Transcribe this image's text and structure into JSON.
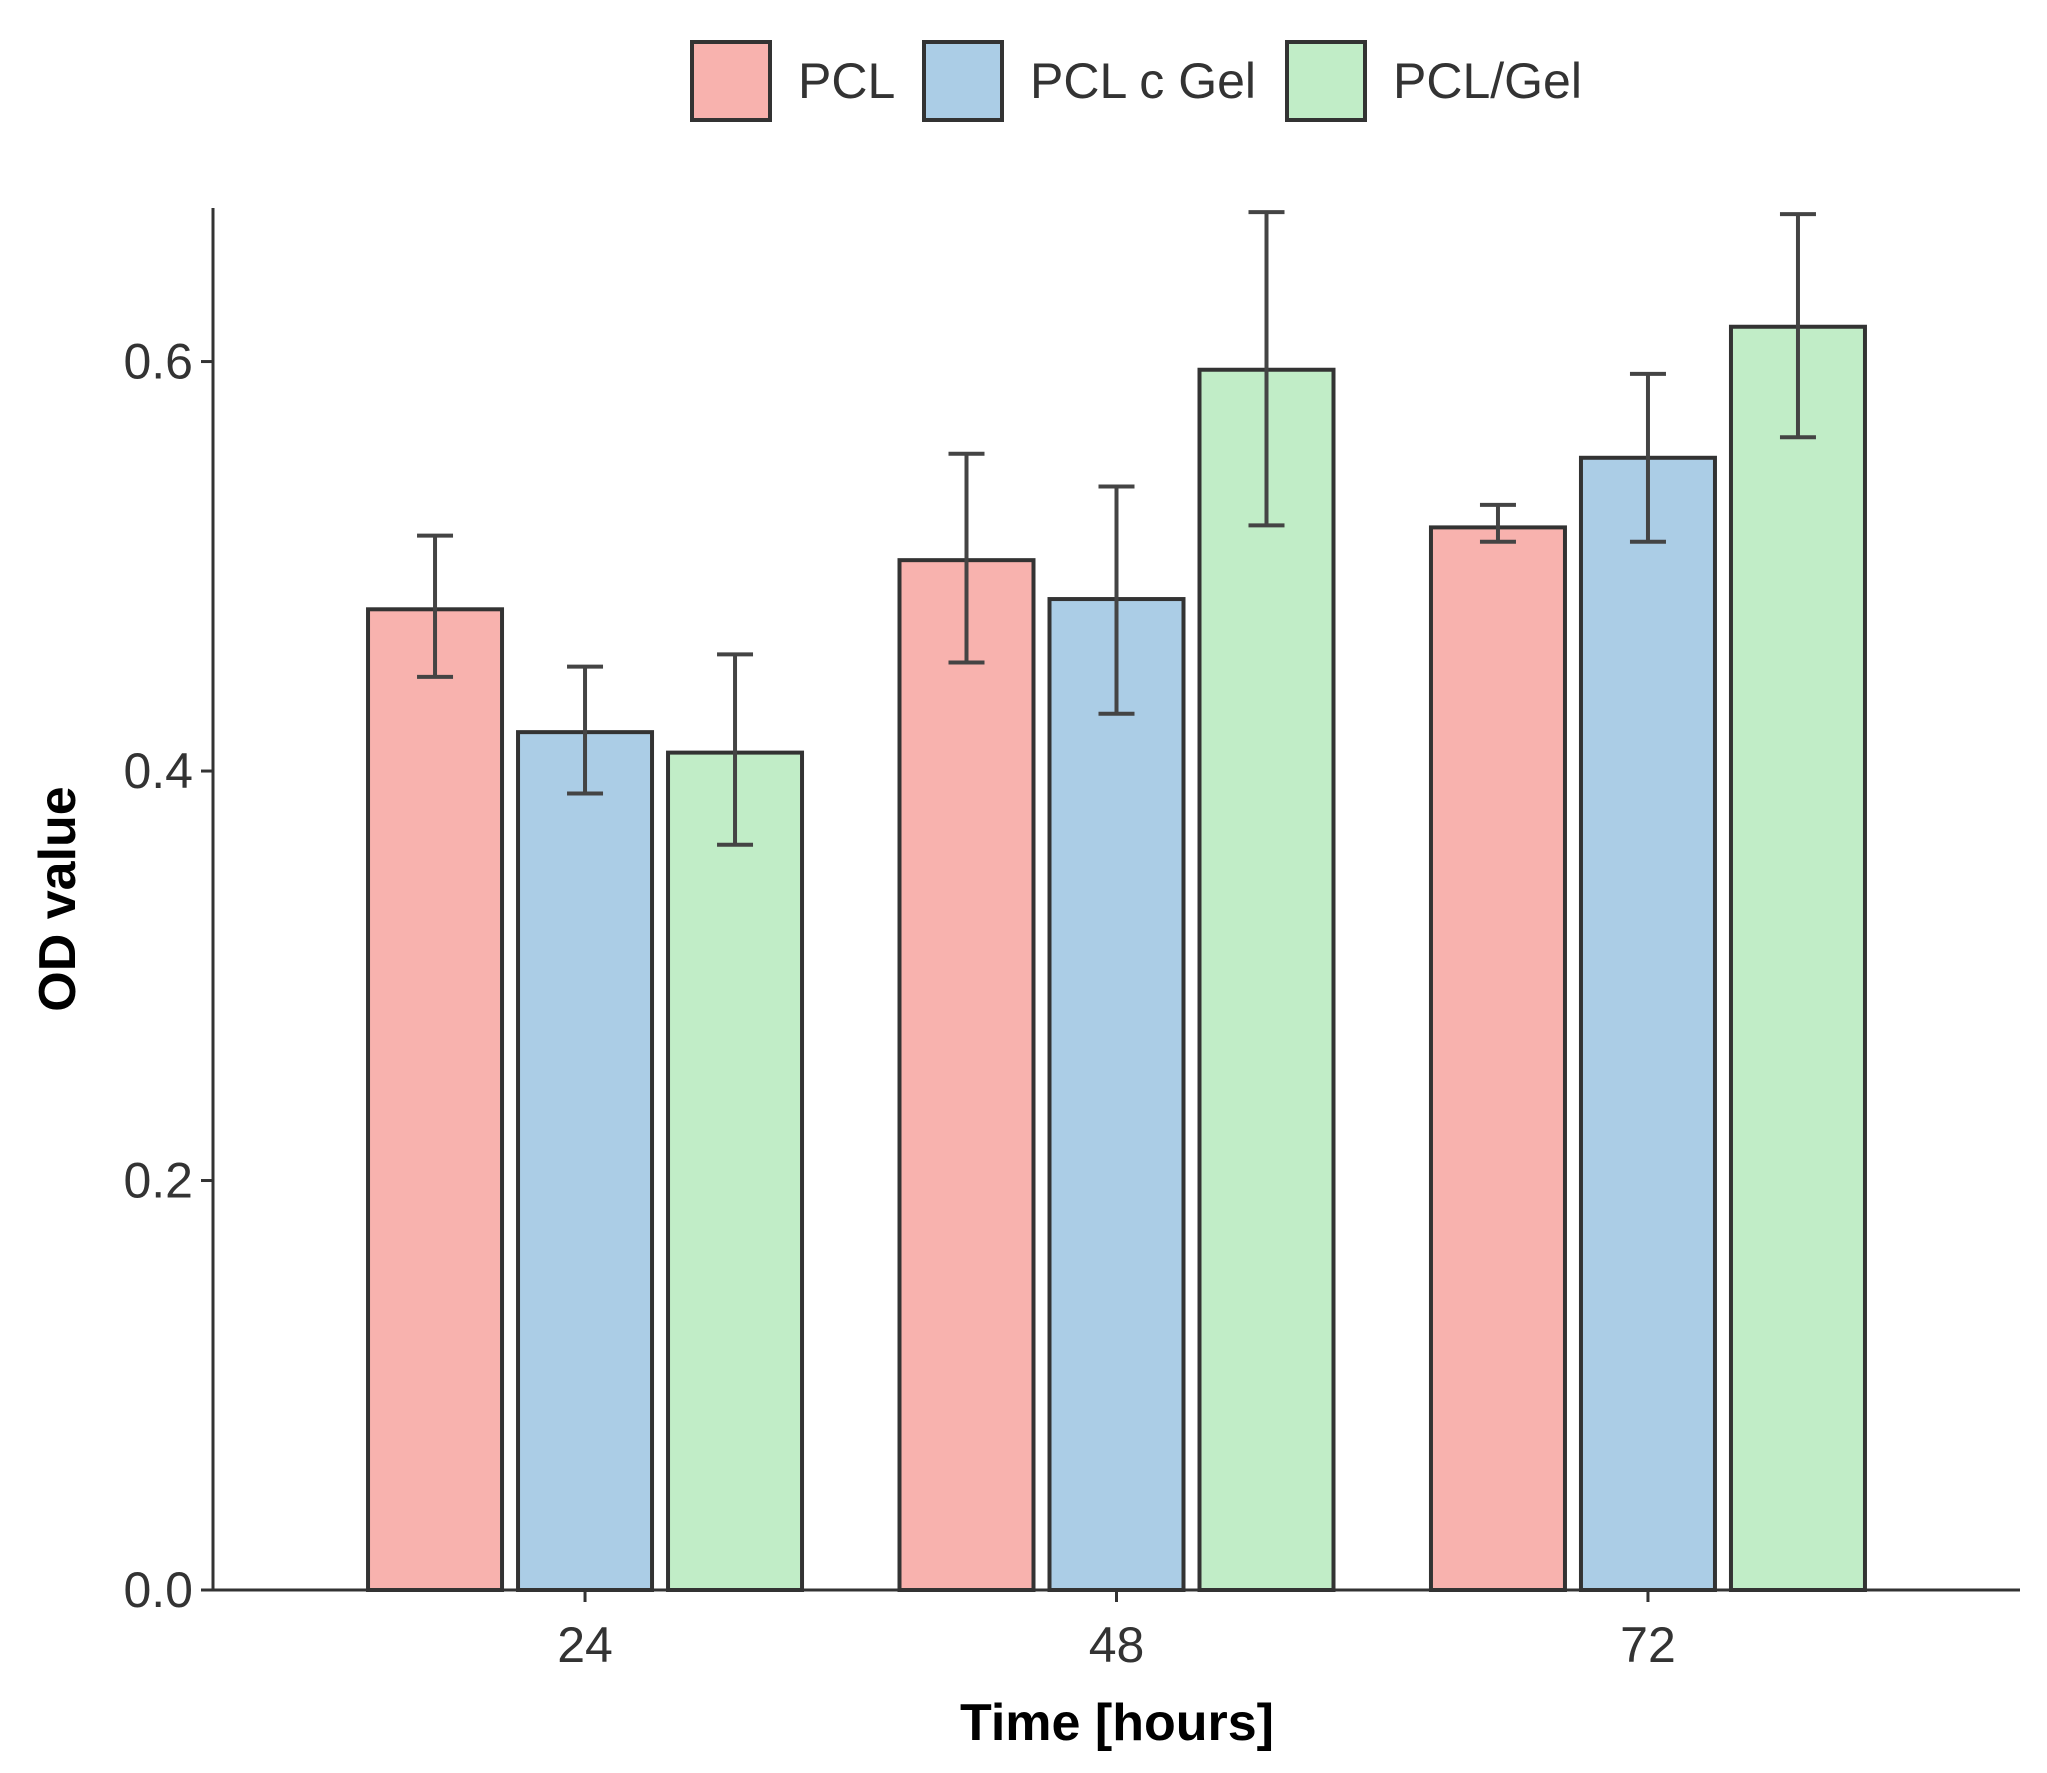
{
  "chart_data": {
    "type": "bar",
    "title": "",
    "xlabel": "Time [hours]",
    "ylabel": "OD value",
    "ylim": [
      0,
      0.675
    ],
    "yticks": [
      0.0,
      0.2,
      0.4,
      0.6
    ],
    "ytick_labels": [
      "0.0",
      "0.2",
      "0.4",
      "0.6"
    ],
    "categories": [
      "24",
      "48",
      "72"
    ],
    "legend_position": "top",
    "series": [
      {
        "name": "PCL",
        "color": "#F8B2AE",
        "values": [
          0.479,
          0.503,
          0.519
        ],
        "error_low": [
          0.446,
          0.453,
          0.512
        ],
        "error_high": [
          0.515,
          0.555,
          0.53
        ]
      },
      {
        "name": "PCL c Gel",
        "color": "#ABCDE6",
        "values": [
          0.419,
          0.484,
          0.553
        ],
        "error_low": [
          0.389,
          0.428,
          0.512
        ],
        "error_high": [
          0.451,
          0.539,
          0.594
        ]
      },
      {
        "name": "PCL/Gel",
        "color": "#C1EDC7",
        "values": [
          0.409,
          0.596,
          0.617
        ],
        "error_low": [
          0.364,
          0.52,
          0.563
        ],
        "error_high": [
          0.457,
          0.673,
          0.672
        ]
      }
    ]
  }
}
